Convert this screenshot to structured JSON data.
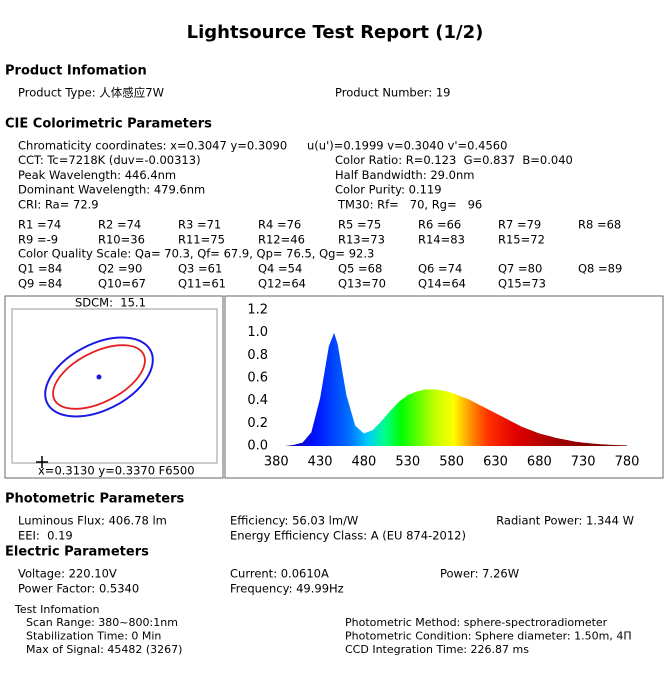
{
  "title": "Lightsource Test Report (1/2)",
  "product": {
    "heading": "Product Infomation",
    "items": [
      "Product Type: 人体感应7W",
      "Product Number: 19"
    ]
  },
  "cie": {
    "heading": "CIE Colorimetric Parameters",
    "rows": [
      [
        "Chromaticity coordinates: x=0.3047 y=0.3090",
        "u(u')=0.1999 v=0.3040 v'=0.4560"
      ],
      [
        "CCT: Tc=7218K (duv=-0.00313)",
        "Color Ratio: R=0.123  G=0.837  B=0.040"
      ],
      [
        "Peak Wavelength: 446.4nm",
        "Half Bandwidth: 29.0nm"
      ],
      [
        "Dominant Wavelength: 479.6nm",
        "Color Purity: 0.119"
      ],
      [
        "CRI: Ra= 72.9",
        "TM30: Rf=   70, Rg=   96"
      ]
    ],
    "r_values": [
      "R1 =74",
      "R2 =74",
      "R3 =71",
      "R4 =76",
      "R5 =75",
      "R6 =66",
      "R7 =79",
      "R8 =68",
      "R9 =-9",
      "R10=36",
      "R11=75",
      "R12=46",
      "R13=73",
      "R14=83",
      "R15=72"
    ],
    "cqs": "Color Quality Scale: Qa= 70.3, Qf= 67.9, Qp= 76.5, Qg= 92.3",
    "q_values": [
      "Q1 =84",
      "Q2 =90",
      "Q3 =61",
      "Q4 =54",
      "Q5 =68",
      "Q6 =74",
      "Q7 =80",
      "Q8 =89",
      "Q9 =84",
      "Q10=67",
      "Q11=61",
      "Q12=64",
      "Q13=70",
      "Q14=64",
      "Q15=73"
    ]
  },
  "sdcm": {
    "label": "SDCM:  15.1",
    "reference": "x=0.3130 y=0.3370 F6500"
  },
  "chart_data": {
    "type": "area",
    "x": [
      380,
      390,
      400,
      410,
      420,
      430,
      440,
      446,
      450,
      460,
      470,
      480,
      490,
      500,
      510,
      520,
      530,
      540,
      550,
      560,
      570,
      580,
      590,
      600,
      610,
      620,
      630,
      640,
      650,
      660,
      670,
      680,
      690,
      700,
      710,
      720,
      730,
      740,
      750,
      760,
      770,
      780
    ],
    "values": [
      0,
      0,
      0.01,
      0.03,
      0.12,
      0.42,
      0.88,
      1.0,
      0.9,
      0.45,
      0.18,
      0.11,
      0.14,
      0.22,
      0.31,
      0.39,
      0.45,
      0.48,
      0.5,
      0.5,
      0.49,
      0.47,
      0.44,
      0.41,
      0.37,
      0.33,
      0.29,
      0.25,
      0.21,
      0.17,
      0.14,
      0.11,
      0.09,
      0.07,
      0.055,
      0.04,
      0.03,
      0.022,
      0.016,
      0.011,
      0.008,
      0.005
    ],
    "xlim": [
      325,
      821
    ],
    "ylim": [
      0,
      1.3
    ],
    "xticks": [
      380,
      430,
      480,
      530,
      580,
      630,
      680,
      730,
      780
    ],
    "yticks": [
      {
        "value": 0,
        "label": "0.0"
      },
      0.2,
      0.4,
      0.6,
      0.8,
      {
        "value": 1,
        "label": "1.0"
      },
      1.2
    ]
  },
  "photometric": {
    "heading": "Photometric Parameters",
    "rows": [
      [
        "Luminous Flux: 406.78 lm",
        "Efficiency: 56.03 lm/W",
        "Radiant Power: 1.344 W"
      ],
      [
        "EEI:  0.19",
        "Energy Efficiency Class: A (EU 874-2012)"
      ]
    ]
  },
  "electric": {
    "heading": "Electric Parameters",
    "rows": [
      [
        "Voltage: 220.10V",
        "Current: 0.0610A",
        "Power: 7.26W"
      ],
      [
        "Power Factor: 0.5340",
        "Frequency: 49.99Hz"
      ]
    ]
  },
  "test_info": {
    "heading": "Test Infomation",
    "left": [
      "Scan Range: 380~800:1nm",
      "Stabilization Time: 0 Min",
      "Max of Signal: 45482 (3267)"
    ],
    "right": [
      "Photometric Method: sphere-spectroradiometer",
      "Photometric Condition: Sphere diameter: 1.50m, 4Π",
      "CCD Integration Time: 226.87 ms"
    ]
  }
}
